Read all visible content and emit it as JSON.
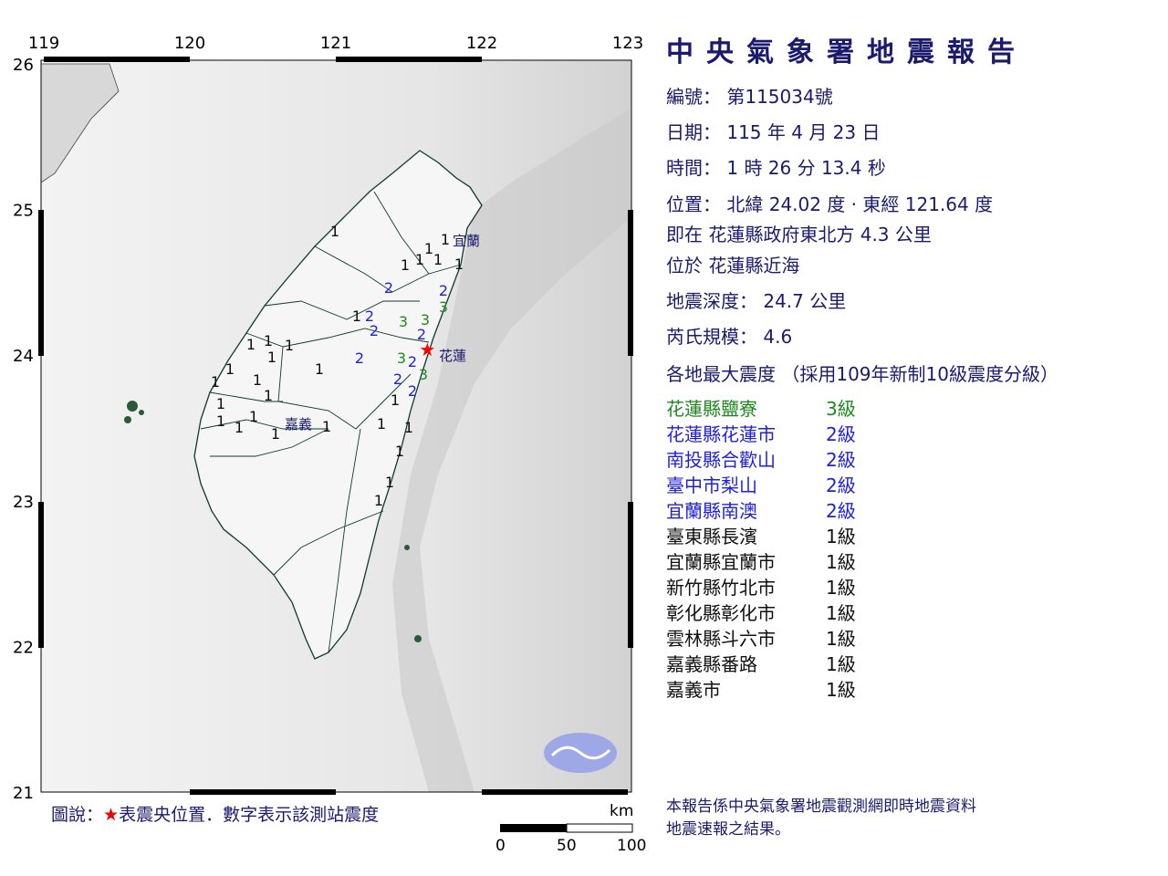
{
  "title": "中央氣象署地震報告",
  "report": {
    "number_label": "編號：",
    "number": "第115034號",
    "date_label": "日期：",
    "date": "115 年 4 月 23 日",
    "time_label": "時間：",
    "time": "1 時 26 分 13.4 秒",
    "position_label": "位置：",
    "position": "北緯 24.02 度 · 東經 121.64 度",
    "relative_label": "即在",
    "relative": "花蓮縣政府東北方 4.3 公里",
    "located_label": "位於",
    "located": "花蓮縣近海",
    "depth_label": "地震深度：",
    "depth": "24.7 公里",
    "magnitude_label": "芮氏規模：",
    "magnitude": "4.6",
    "intensity_heading": "各地最大震度 （採用109年新制10級震度分級）"
  },
  "intensities": [
    {
      "station": "花蓮縣鹽寮",
      "level": "3級",
      "color": "#1f8a1f"
    },
    {
      "station": "花蓮縣花蓮市",
      "level": "2級",
      "color": "#1f1fe0"
    },
    {
      "station": "南投縣合歡山",
      "level": "2級",
      "color": "#1f1fe0"
    },
    {
      "station": "臺中市梨山",
      "level": "2級",
      "color": "#1f1fe0"
    },
    {
      "station": "宜蘭縣南澳",
      "level": "2級",
      "color": "#1f1fe0"
    },
    {
      "station": "臺東縣長濱",
      "level": "1級",
      "color": "#111111"
    },
    {
      "station": "宜蘭縣宜蘭市",
      "level": "1級",
      "color": "#111111"
    },
    {
      "station": "新竹縣竹北市",
      "level": "1級",
      "color": "#111111"
    },
    {
      "station": "彰化縣彰化市",
      "level": "1級",
      "color": "#111111"
    },
    {
      "station": "雲林縣斗六市",
      "level": "1級",
      "color": "#111111"
    },
    {
      "station": "嘉義縣番路",
      "level": "1級",
      "color": "#111111"
    },
    {
      "station": "嘉義市",
      "level": "1級",
      "color": "#111111"
    }
  ],
  "map": {
    "lon_ticks": [
      "119",
      "120",
      "121",
      "122",
      "123"
    ],
    "lat_ticks": [
      "26",
      "25",
      "24",
      "23",
      "22",
      "21"
    ],
    "city_labels": [
      "宜蘭",
      "花蓮",
      "嘉義"
    ],
    "epicenter": {
      "lat": 24.02,
      "lon": 121.64,
      "icon": "red-star-icon",
      "color": "#ff0000"
    },
    "station_intensities": [
      "1",
      "1",
      "1",
      "1",
      "1",
      "1",
      "1",
      "1",
      "1",
      "1",
      "1",
      "1",
      "1",
      "1",
      "1",
      "1",
      "1",
      "1",
      "1",
      "1",
      "1",
      "1",
      "1",
      "1",
      "1",
      "1",
      "1",
      "1",
      "1",
      "2",
      "2",
      "2",
      "2",
      "2",
      "2",
      "2",
      "2",
      "2",
      "3",
      "3",
      "3",
      "3",
      "3"
    ],
    "scale_unit": "km",
    "scale_ticks": [
      "0",
      "50",
      "100"
    ]
  },
  "legend": {
    "prefix": "圖說：",
    "star": "★",
    "text": "表震央位置．數字表示該測站震度"
  },
  "note": [
    "本報告係中央氣象署地震觀測網即時地震資料",
    "地震速報之結果。"
  ]
}
